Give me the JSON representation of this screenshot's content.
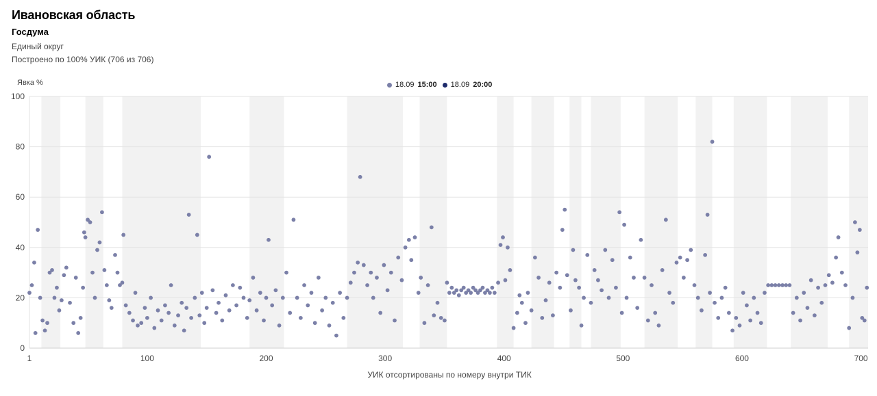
{
  "header": {
    "title": "Ивановская область",
    "subtitle": "Госдума",
    "district": "Единый округ",
    "coverage": "Построено по 100% УИК (706 из 706)"
  },
  "legend": [
    {
      "date": "18.09",
      "time": "15:00",
      "color": "#7b80a8"
    },
    {
      "date": "18.09",
      "time": "20:00",
      "color": "#1d2b6b"
    }
  ],
  "colors": {
    "point": "#7b80a8",
    "band": "#f2f2f2",
    "grid": "#e3e3e3"
  },
  "chart_data": {
    "type": "scatter",
    "ylabel": "Явка %",
    "xlabel": "УИК отсортированы по номеру внутри ТИК",
    "xlim": [
      1,
      706
    ],
    "ylim": [
      0,
      100
    ],
    "x_ticks": [
      1,
      100,
      200,
      300,
      400,
      500,
      600,
      700
    ],
    "y_ticks": [
      0,
      20,
      40,
      60,
      80,
      100
    ],
    "grid": true,
    "legend_placement": "top-center",
    "tik_bands": [
      [
        11,
        27
      ],
      [
        48,
        63
      ],
      [
        79,
        145
      ],
      [
        186,
        215
      ],
      [
        268,
        315
      ],
      [
        329,
        352
      ],
      [
        394,
        408
      ],
      [
        423,
        442
      ],
      [
        455,
        465
      ],
      [
        473,
        498
      ],
      [
        518,
        546
      ],
      [
        561,
        575
      ],
      [
        593,
        621
      ],
      [
        641,
        672
      ],
      [
        690,
        706
      ]
    ],
    "series": [
      {
        "name": "18.09 15:00",
        "points": [
          [
            1,
            22
          ],
          [
            3,
            25
          ],
          [
            5,
            34
          ],
          [
            6,
            6
          ],
          [
            8,
            47
          ],
          [
            10,
            20
          ],
          [
            12,
            11
          ],
          [
            14,
            7
          ],
          [
            16,
            10
          ],
          [
            18,
            30
          ],
          [
            20,
            31
          ],
          [
            22,
            20
          ],
          [
            24,
            24
          ],
          [
            26,
            15
          ],
          [
            28,
            19
          ],
          [
            30,
            29
          ],
          [
            32,
            32
          ],
          [
            35,
            18
          ],
          [
            38,
            10
          ],
          [
            40,
            28
          ],
          [
            42,
            6
          ],
          [
            44,
            12
          ],
          [
            46,
            24
          ],
          [
            47,
            46
          ],
          [
            48,
            44
          ],
          [
            50,
            51
          ],
          [
            52,
            50
          ],
          [
            54,
            30
          ],
          [
            56,
            20
          ],
          [
            58,
            39
          ],
          [
            60,
            42
          ],
          [
            62,
            54
          ],
          [
            64,
            31
          ],
          [
            66,
            25
          ],
          [
            68,
            19
          ],
          [
            70,
            16
          ],
          [
            73,
            37
          ],
          [
            75,
            30
          ],
          [
            77,
            25
          ],
          [
            79,
            26
          ],
          [
            80,
            45
          ],
          [
            82,
            17
          ],
          [
            85,
            14
          ],
          [
            88,
            11
          ],
          [
            90,
            22
          ],
          [
            92,
            9
          ],
          [
            95,
            10
          ],
          [
            98,
            16
          ],
          [
            100,
            12
          ],
          [
            103,
            20
          ],
          [
            106,
            8
          ],
          [
            109,
            15
          ],
          [
            112,
            11
          ],
          [
            115,
            17
          ],
          [
            118,
            14
          ],
          [
            120,
            25
          ],
          [
            123,
            9
          ],
          [
            126,
            13
          ],
          [
            129,
            18
          ],
          [
            131,
            7
          ],
          [
            133,
            16
          ],
          [
            135,
            53
          ],
          [
            137,
            12
          ],
          [
            140,
            20
          ],
          [
            142,
            45
          ],
          [
            144,
            13
          ],
          [
            146,
            22
          ],
          [
            148,
            10
          ],
          [
            150,
            16
          ],
          [
            152,
            76
          ],
          [
            155,
            23
          ],
          [
            158,
            14
          ],
          [
            160,
            18
          ],
          [
            163,
            11
          ],
          [
            166,
            21
          ],
          [
            169,
            15
          ],
          [
            172,
            25
          ],
          [
            175,
            17
          ],
          [
            178,
            24
          ],
          [
            181,
            20
          ],
          [
            184,
            12
          ],
          [
            186,
            19
          ],
          [
            189,
            28
          ],
          [
            192,
            15
          ],
          [
            195,
            22
          ],
          [
            198,
            11
          ],
          [
            200,
            20
          ],
          [
            202,
            43
          ],
          [
            205,
            17
          ],
          [
            208,
            23
          ],
          [
            211,
            9
          ],
          [
            214,
            20
          ],
          [
            217,
            30
          ],
          [
            220,
            14
          ],
          [
            223,
            51
          ],
          [
            226,
            20
          ],
          [
            229,
            12
          ],
          [
            232,
            25
          ],
          [
            235,
            17
          ],
          [
            238,
            22
          ],
          [
            241,
            10
          ],
          [
            244,
            28
          ],
          [
            247,
            15
          ],
          [
            250,
            20
          ],
          [
            253,
            9
          ],
          [
            256,
            18
          ],
          [
            259,
            5
          ],
          [
            262,
            22
          ],
          [
            265,
            12
          ],
          [
            268,
            20
          ],
          [
            271,
            26
          ],
          [
            274,
            30
          ],
          [
            277,
            34
          ],
          [
            279,
            68
          ],
          [
            282,
            33
          ],
          [
            285,
            25
          ],
          [
            288,
            30
          ],
          [
            290,
            20
          ],
          [
            293,
            28
          ],
          [
            296,
            14
          ],
          [
            299,
            33
          ],
          [
            302,
            23
          ],
          [
            305,
            30
          ],
          [
            308,
            11
          ],
          [
            311,
            36
          ],
          [
            314,
            27
          ],
          [
            317,
            40
          ],
          [
            320,
            43
          ],
          [
            322,
            35
          ],
          [
            325,
            44
          ],
          [
            328,
            22
          ],
          [
            330,
            28
          ],
          [
            333,
            10
          ],
          [
            336,
            25
          ],
          [
            339,
            48
          ],
          [
            341,
            13
          ],
          [
            344,
            18
          ],
          [
            347,
            12
          ],
          [
            350,
            11
          ],
          [
            352,
            26
          ],
          [
            354,
            22
          ],
          [
            356,
            24
          ],
          [
            358,
            22
          ],
          [
            360,
            23
          ],
          [
            362,
            21
          ],
          [
            364,
            23
          ],
          [
            366,
            24
          ],
          [
            368,
            22
          ],
          [
            370,
            23
          ],
          [
            372,
            22
          ],
          [
            374,
            24
          ],
          [
            376,
            23
          ],
          [
            378,
            22
          ],
          [
            380,
            23
          ],
          [
            382,
            24
          ],
          [
            384,
            22
          ],
          [
            386,
            23
          ],
          [
            388,
            22
          ],
          [
            390,
            24
          ],
          [
            392,
            22
          ],
          [
            395,
            26
          ],
          [
            397,
            41
          ],
          [
            399,
            44
          ],
          [
            401,
            27
          ],
          [
            403,
            40
          ],
          [
            405,
            31
          ],
          [
            408,
            8
          ],
          [
            411,
            14
          ],
          [
            413,
            21
          ],
          [
            415,
            18
          ],
          [
            418,
            10
          ],
          [
            420,
            22
          ],
          [
            423,
            15
          ],
          [
            426,
            36
          ],
          [
            429,
            28
          ],
          [
            432,
            12
          ],
          [
            435,
            19
          ],
          [
            438,
            26
          ],
          [
            441,
            13
          ],
          [
            444,
            30
          ],
          [
            447,
            24
          ],
          [
            449,
            47
          ],
          [
            451,
            55
          ],
          [
            453,
            29
          ],
          [
            456,
            15
          ],
          [
            458,
            39
          ],
          [
            460,
            27
          ],
          [
            463,
            24
          ],
          [
            465,
            9
          ],
          [
            467,
            20
          ],
          [
            470,
            37
          ],
          [
            473,
            18
          ],
          [
            476,
            31
          ],
          [
            479,
            27
          ],
          [
            482,
            23
          ],
          [
            485,
            39
          ],
          [
            488,
            20
          ],
          [
            491,
            35
          ],
          [
            494,
            24
          ],
          [
            497,
            54
          ],
          [
            499,
            14
          ],
          [
            501,
            49
          ],
          [
            503,
            20
          ],
          [
            506,
            36
          ],
          [
            509,
            28
          ],
          [
            512,
            16
          ],
          [
            515,
            43
          ],
          [
            518,
            28
          ],
          [
            521,
            11
          ],
          [
            524,
            25
          ],
          [
            527,
            14
          ],
          [
            530,
            9
          ],
          [
            533,
            31
          ],
          [
            536,
            51
          ],
          [
            539,
            22
          ],
          [
            542,
            18
          ],
          [
            545,
            34
          ],
          [
            548,
            36
          ],
          [
            551,
            28
          ],
          [
            554,
            35
          ],
          [
            557,
            39
          ],
          [
            560,
            25
          ],
          [
            563,
            20
          ],
          [
            566,
            15
          ],
          [
            569,
            37
          ],
          [
            571,
            53
          ],
          [
            573,
            22
          ],
          [
            575,
            82
          ],
          [
            577,
            18
          ],
          [
            580,
            12
          ],
          [
            583,
            20
          ],
          [
            586,
            24
          ],
          [
            589,
            14
          ],
          [
            592,
            7
          ],
          [
            595,
            12
          ],
          [
            598,
            9
          ],
          [
            601,
            22
          ],
          [
            604,
            17
          ],
          [
            607,
            11
          ],
          [
            610,
            20
          ],
          [
            613,
            14
          ],
          [
            616,
            10
          ],
          [
            619,
            22
          ],
          [
            622,
            25
          ],
          [
            625,
            25
          ],
          [
            628,
            25
          ],
          [
            631,
            25
          ],
          [
            634,
            25
          ],
          [
            637,
            25
          ],
          [
            640,
            25
          ],
          [
            643,
            14
          ],
          [
            646,
            20
          ],
          [
            649,
            11
          ],
          [
            652,
            22
          ],
          [
            655,
            16
          ],
          [
            658,
            27
          ],
          [
            661,
            13
          ],
          [
            664,
            24
          ],
          [
            667,
            18
          ],
          [
            670,
            25
          ],
          [
            673,
            29
          ],
          [
            676,
            26
          ],
          [
            679,
            36
          ],
          [
            681,
            44
          ],
          [
            684,
            30
          ],
          [
            687,
            25
          ],
          [
            690,
            8
          ],
          [
            693,
            20
          ],
          [
            695,
            50
          ],
          [
            697,
            38
          ],
          [
            699,
            47
          ],
          [
            701,
            12
          ],
          [
            703,
            11
          ],
          [
            705,
            24
          ]
        ]
      }
    ]
  }
}
